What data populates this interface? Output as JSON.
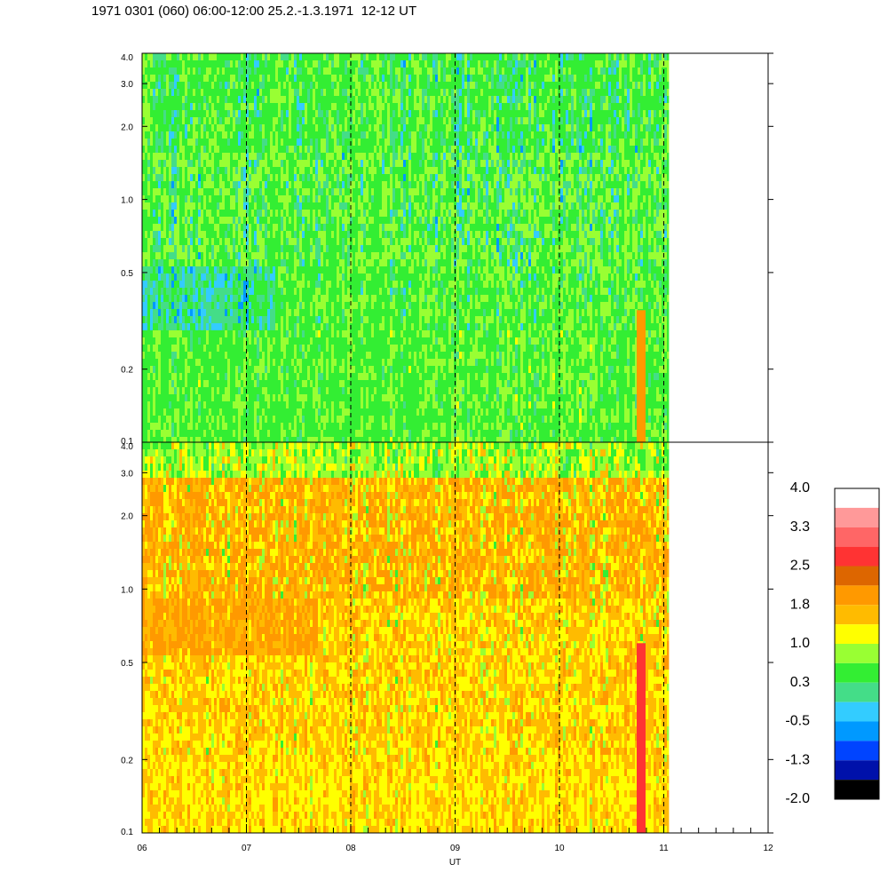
{
  "title": "1971 0301 (060) 06:00-12:00 25.2.-1.3.1971  12-12 UT",
  "chart_data": [
    {
      "type": "heatmap",
      "panel": "top",
      "x_range": [
        6,
        12
      ],
      "data_end_x": 11.05,
      "x_ticks": [
        "06",
        "07",
        "08",
        "09",
        "10",
        "11",
        "12"
      ],
      "y_scale": "log",
      "y_range": [
        0.1,
        4.0
      ],
      "y_ticks": [
        {
          "value": 4.0,
          "label": "4.0"
        },
        {
          "value": 3.0,
          "label": "3.0"
        },
        {
          "value": 2.0,
          "label": "2.0"
        },
        {
          "value": 1.0,
          "label": "1.0"
        },
        {
          "value": 0.5,
          "label": "0.5"
        },
        {
          "value": 0.2,
          "label": "0.2"
        },
        {
          "value": 0.1,
          "label": "0.1"
        }
      ],
      "dominant_levels": [
        "0.3",
        "-0.5",
        "-1.3"
      ],
      "dashed_gridlines_x": [
        7,
        8,
        9,
        10,
        11
      ]
    },
    {
      "type": "heatmap",
      "panel": "bottom",
      "x_range": [
        6,
        12
      ],
      "data_end_x": 11.05,
      "x_ticks": [
        "06",
        "07",
        "08",
        "09",
        "10",
        "11",
        "12"
      ],
      "xlabel": "UT",
      "y_scale": "log",
      "y_range": [
        0.1,
        4.0
      ],
      "y_ticks": [
        {
          "value": 4.0,
          "label": "4.0"
        },
        {
          "value": 3.0,
          "label": "3.0"
        },
        {
          "value": 2.0,
          "label": "2.0"
        },
        {
          "value": 1.0,
          "label": "1.0"
        },
        {
          "value": 0.5,
          "label": "0.5"
        },
        {
          "value": 0.2,
          "label": "0.2"
        },
        {
          "value": 0.1,
          "label": "0.1"
        }
      ],
      "dominant_levels": [
        "1.0",
        "1.8"
      ],
      "dashed_gridlines_x": [
        7,
        8,
        9,
        10,
        11
      ]
    }
  ],
  "colorbar": {
    "labels": [
      "4.0",
      "3.3",
      "2.5",
      "1.8",
      "1.0",
      "0.3",
      "-0.5",
      "-1.3",
      "-2.0"
    ],
    "colors": [
      "#ffffff",
      "#ff9999",
      "#ff6666",
      "#ff3333",
      "#dd6600",
      "#ff9900",
      "#ffbb00",
      "#ffff00",
      "#99ff33",
      "#33ee33",
      "#44dd88",
      "#33ccff",
      "#0099ff",
      "#0044ff",
      "#0011aa",
      "#000000"
    ]
  }
}
